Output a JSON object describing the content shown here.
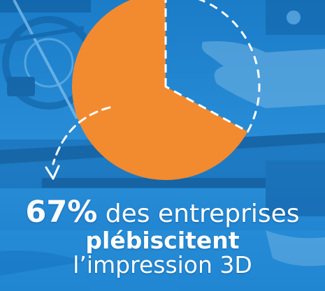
{
  "colors": {
    "background": "#1f86d3",
    "pie_fill": "#f28a30",
    "pie_remaining_outline": "#ffffff",
    "text": "#ffffff"
  },
  "caption": {
    "percent": "67%",
    "line1_rest": " des entreprises",
    "line2": "plébiscitent",
    "line3": "l’impression 3D"
  },
  "chart_data": {
    "type": "pie",
    "title": "",
    "slices": [
      {
        "label": "",
        "value": 67,
        "style": "filled"
      },
      {
        "label": "",
        "value": 33,
        "style": "dashed-outline"
      }
    ],
    "annotation": "dashed arrow pointing from the filled slice to the caption text"
  }
}
